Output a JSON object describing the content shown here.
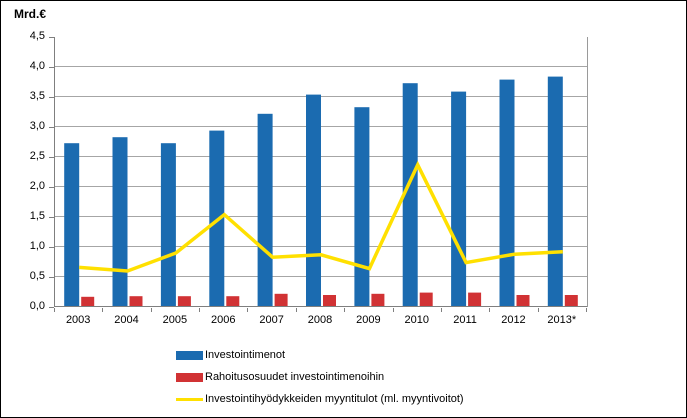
{
  "title": "Mrd.€",
  "axes": {
    "y_tick_labels": [
      "4,5",
      "4,0",
      "3,5",
      "3,0",
      "2,5",
      "2,0",
      "1,5",
      "1,0",
      "0,5",
      "0,0"
    ],
    "x_tick_labels": [
      "2003",
      "2004",
      "2005",
      "2006",
      "2007",
      "2008",
      "2009",
      "2010",
      "2011",
      "2012",
      "2013*"
    ]
  },
  "colors": {
    "bar_blue": "#1b6bb0",
    "bar_red": "#d13234",
    "line_yellow": "#ffe000",
    "gridline": "#a6a6a6",
    "axis": "#7f7f7f"
  },
  "legend": [
    {
      "label": "Investointimenot",
      "swatch": "bar",
      "color": "#1b6bb0"
    },
    {
      "label": "Rahoitusosuudet investointimenoihin",
      "swatch": "bar",
      "color": "#d13234"
    },
    {
      "label": "Investointihyödykkeiden myyntitulot (ml. myyntivoitot)",
      "swatch": "line",
      "color": "#ffe000"
    }
  ],
  "chart_data": {
    "type": "bar",
    "title": "Mrd.€",
    "xlabel": "",
    "ylabel": "Mrd.€",
    "ylim": [
      0,
      4.5
    ],
    "ystep": 0.5,
    "grid": true,
    "legend_position": "bottom",
    "categories": [
      "2003",
      "2004",
      "2005",
      "2006",
      "2007",
      "2008",
      "2009",
      "2010",
      "2011",
      "2012",
      "2013*"
    ],
    "series": [
      {
        "name": "Investointimenot",
        "type": "bar",
        "color": "#1b6bb0",
        "values": [
          2.73,
          2.83,
          2.73,
          2.94,
          3.22,
          3.54,
          3.33,
          3.73,
          3.59,
          3.79,
          3.84
        ]
      },
      {
        "name": "Rahoitusosuudet investointimenoihin",
        "type": "bar",
        "color": "#d13234",
        "values": [
          0.17,
          0.18,
          0.18,
          0.18,
          0.22,
          0.2,
          0.22,
          0.24,
          0.24,
          0.2,
          0.2
        ]
      },
      {
        "name": "Investointihyödykkeiden myyntitulot (ml. myyntivoitot)",
        "type": "line",
        "color": "#ffe000",
        "values": [
          0.66,
          0.6,
          0.9,
          1.54,
          0.83,
          0.87,
          0.64,
          2.37,
          0.74,
          0.88,
          0.92
        ]
      }
    ]
  }
}
